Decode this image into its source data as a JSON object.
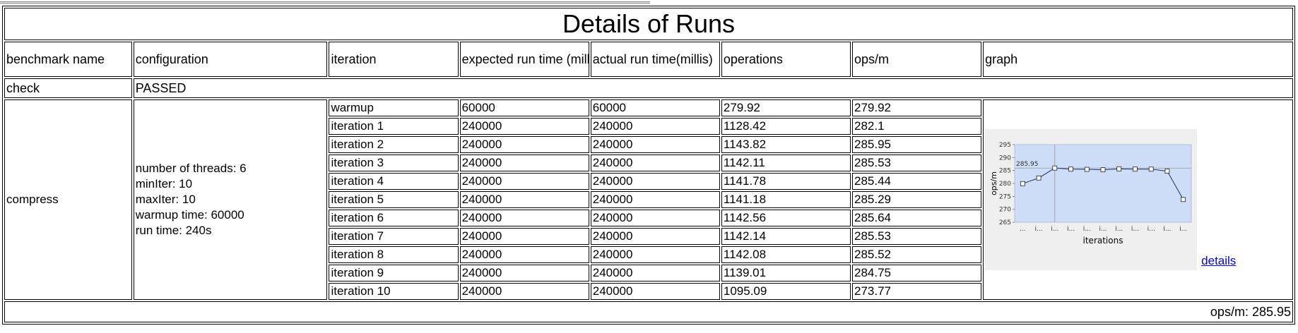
{
  "title": "Details of Runs",
  "headers": {
    "benchmark_name": "benchmark name",
    "configuration": "configuration",
    "iteration": "iteration",
    "expected_run_time": "expected run time (millis)",
    "actual_run_time": "actual run time(millis)",
    "operations": "operations",
    "ops_per_m": "ops/m",
    "graph": "graph"
  },
  "check": {
    "label": "check",
    "value": "PASSED"
  },
  "benchmark": {
    "name": "compress",
    "config_lines": [
      "number of threads: 6",
      "minIter: 10",
      "maxIter: 10",
      "warmup time: 60000",
      "run time: 240s"
    ],
    "rows": [
      {
        "iteration": "warmup",
        "expected": "60000",
        "actual": "60000",
        "operations": "279.92",
        "opsm": "279.92"
      },
      {
        "iteration": "iteration 1",
        "expected": "240000",
        "actual": "240000",
        "operations": "1128.42",
        "opsm": "282.1"
      },
      {
        "iteration": "iteration 2",
        "expected": "240000",
        "actual": "240000",
        "operations": "1143.82",
        "opsm": "285.95"
      },
      {
        "iteration": "iteration 3",
        "expected": "240000",
        "actual": "240000",
        "operations": "1142.11",
        "opsm": "285.53"
      },
      {
        "iteration": "iteration 4",
        "expected": "240000",
        "actual": "240000",
        "operations": "1141.78",
        "opsm": "285.44"
      },
      {
        "iteration": "iteration 5",
        "expected": "240000",
        "actual": "240000",
        "operations": "1141.18",
        "opsm": "285.29"
      },
      {
        "iteration": "iteration 6",
        "expected": "240000",
        "actual": "240000",
        "operations": "1142.56",
        "opsm": "285.64"
      },
      {
        "iteration": "iteration 7",
        "expected": "240000",
        "actual": "240000",
        "operations": "1142.14",
        "opsm": "285.53"
      },
      {
        "iteration": "iteration 8",
        "expected": "240000",
        "actual": "240000",
        "operations": "1142.08",
        "opsm": "285.52"
      },
      {
        "iteration": "iteration 9",
        "expected": "240000",
        "actual": "240000",
        "operations": "1139.01",
        "opsm": "284.75"
      },
      {
        "iteration": "iteration 10",
        "expected": "240000",
        "actual": "240000",
        "operations": "1095.09",
        "opsm": "273.77"
      }
    ],
    "details_link": "details"
  },
  "footer": "ops/m: 285.95",
  "chart_data": {
    "type": "line",
    "categories": [
      "...",
      "i...",
      "i...",
      "i...",
      "i...",
      "i...",
      "i...",
      "i...",
      "i...",
      "i...",
      "i..."
    ],
    "values": [
      279.92,
      282.1,
      285.95,
      285.53,
      285.44,
      285.29,
      285.64,
      285.53,
      285.52,
      284.75,
      273.77
    ],
    "xlabel": "iterations",
    "ylabel": "ops/m",
    "ylim": [
      265,
      295
    ],
    "yticks": [
      265,
      270,
      275,
      280,
      285,
      290,
      295
    ],
    "marker_label": "285.95",
    "marker_value": 285.95,
    "marker_index": 2,
    "grid": false,
    "colors": {
      "plot_bg": "#cddcf7",
      "line": "#1f2f6f",
      "panel_bg": "#efefef",
      "marker_line": "#8a8a8a"
    }
  }
}
